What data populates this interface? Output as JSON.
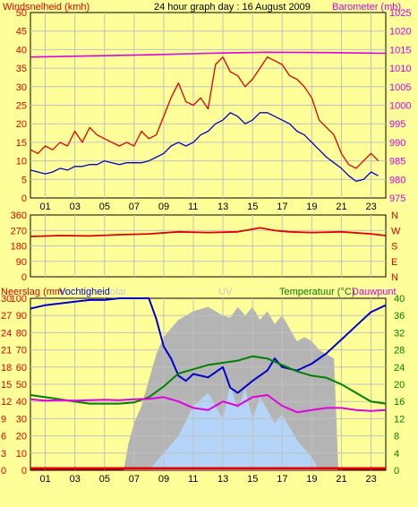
{
  "colors": {
    "background": "#ffff99",
    "plot_bg": "#ffff99",
    "grid": "#c0c0c0",
    "gust": "#e00000",
    "wind": "#0000cc",
    "baro": "#e000e0",
    "dir": "#e00000",
    "humidity": "#0000cc",
    "temp": "#008000",
    "dew": "#e000e0",
    "solar": "#b4b4b4",
    "uv": "#b4d8ff",
    "rain": "#e00000",
    "left_axis": "#e00000",
    "temp_axis": "#008000",
    "dew_label": "#e000e0",
    "solar_label": "#c8c8c8"
  },
  "chart_data": [
    {
      "type": "line",
      "title": "24 hour graph day : 16 August 2009",
      "left_label": "Windsnelheid (kmh)",
      "right_label": "Barometer (mb)",
      "left_ticks": [
        "0",
        "5",
        "10",
        "15",
        "20",
        "25",
        "30",
        "35",
        "40",
        "45",
        "50"
      ],
      "right_ticks": [
        "975",
        "980",
        "985",
        "990",
        "995",
        "1000",
        "1005",
        "1010",
        "1015",
        "1020",
        "1025"
      ],
      "x_ticks": [
        "01",
        "03",
        "05",
        "07",
        "09",
        "11",
        "13",
        "15",
        "17",
        "19",
        "21",
        "23"
      ],
      "ylim": [
        0,
        50
      ],
      "ylim_right": [
        975,
        1025
      ],
      "xlim": [
        0,
        24
      ],
      "series": [
        {
          "name": "gust",
          "axis": "left",
          "x": [
            0,
            0.5,
            1,
            1.5,
            2,
            2.5,
            3,
            3.5,
            4,
            4.5,
            5,
            5.5,
            6,
            6.5,
            7,
            7.5,
            8,
            8.5,
            9,
            9.5,
            10,
            10.5,
            11,
            11.5,
            12,
            12.5,
            13,
            13.5,
            14,
            14.5,
            15,
            15.5,
            16,
            16.5,
            17,
            17.5,
            18,
            18.5,
            19,
            19.5,
            20,
            20.5,
            21,
            21.5,
            22,
            22.5,
            23,
            23.5
          ],
          "y": [
            13,
            12,
            14,
            13,
            15,
            14,
            18,
            15,
            19,
            17,
            16,
            15,
            14,
            15,
            14,
            18,
            16,
            17,
            22,
            27,
            31,
            26,
            25,
            27,
            24,
            36,
            38,
            34,
            33,
            30,
            32,
            35,
            38,
            37,
            36,
            33,
            32,
            30,
            27,
            21,
            19,
            17,
            12,
            9,
            8,
            10,
            12,
            10
          ]
        },
        {
          "name": "wind",
          "axis": "left",
          "x": [
            0,
            0.5,
            1,
            1.5,
            2,
            2.5,
            3,
            3.5,
            4,
            4.5,
            5,
            5.5,
            6,
            6.5,
            7,
            7.5,
            8,
            8.5,
            9,
            9.5,
            10,
            10.5,
            11,
            11.5,
            12,
            12.5,
            13,
            13.5,
            14,
            14.5,
            15,
            15.5,
            16,
            16.5,
            17,
            17.5,
            18,
            18.5,
            19,
            19.5,
            20,
            20.5,
            21,
            21.5,
            22,
            22.5,
            23,
            23.5
          ],
          "y": [
            7.5,
            7,
            6.5,
            7,
            8,
            7.5,
            8.5,
            8.5,
            9,
            9,
            10,
            9.5,
            9,
            9.5,
            9.5,
            9.5,
            10,
            11,
            12,
            14,
            15,
            14,
            15,
            17,
            18,
            20,
            21,
            23,
            22,
            20,
            21,
            23,
            23,
            22,
            21,
            20,
            18,
            17,
            15,
            13,
            11,
            9.5,
            8,
            6,
            4.5,
            5,
            7,
            6
          ]
        },
        {
          "name": "baro",
          "axis": "right",
          "x": [
            0,
            4,
            8,
            12,
            16,
            20,
            24
          ],
          "y": [
            1013,
            1013.3,
            1013.6,
            1014,
            1014.3,
            1014.2,
            1014
          ]
        }
      ]
    },
    {
      "type": "line",
      "left_ticks": [
        "0",
        "90",
        "180",
        "270",
        "360"
      ],
      "right_ticks": [
        "N",
        "E",
        "S",
        "W",
        "N"
      ],
      "x_ticks": [
        "01",
        "03",
        "05",
        "07",
        "09",
        "11",
        "13",
        "15",
        "17",
        "19",
        "21",
        "23"
      ],
      "ylim": [
        0,
        360
      ],
      "xlim": [
        0,
        24
      ],
      "series": [
        {
          "name": "dir",
          "x": [
            0,
            2,
            4,
            6,
            8,
            10,
            12,
            14,
            15.5,
            16.5,
            17.5,
            19,
            21,
            23,
            24
          ],
          "y": [
            235,
            240,
            238,
            245,
            250,
            262,
            258,
            262,
            285,
            270,
            262,
            258,
            262,
            250,
            240
          ]
        }
      ]
    },
    {
      "type": "line",
      "left_label": "Neerslag (mm",
      "left2_label": "Vochtigheid",
      "solar_label": "olar",
      "uv_label": "UV",
      "right_label": "Temperatuur (°C)",
      "right2_label": "Dauwpunt",
      "rain_ticks": [
        "0",
        "3",
        "6",
        "9",
        "12",
        "15",
        "18",
        "21",
        "24",
        "27",
        "30"
      ],
      "hum_ticks": [
        "0",
        "10",
        "20",
        "30",
        "40",
        "50",
        "60",
        "70",
        "80",
        "90",
        "100"
      ],
      "temp_ticks": [
        "0",
        "4",
        "8",
        "12",
        "16",
        "20",
        "24",
        "28",
        "32",
        "36",
        "40"
      ],
      "x_ticks": [
        "01",
        "03",
        "05",
        "07",
        "09",
        "11",
        "13",
        "15",
        "17",
        "19",
        "21",
        "23"
      ],
      "hum_lim": [
        0,
        100
      ],
      "temp_lim": [
        0,
        40
      ],
      "xlim": [
        0,
        24
      ],
      "series": [
        {
          "name": "humidity",
          "axis": "hum",
          "x": [
            0,
            1,
            2,
            3,
            4,
            5,
            6,
            7,
            8,
            8.5,
            9,
            9.5,
            10,
            10.5,
            11,
            12,
            13,
            13.5,
            14,
            15,
            16,
            16.5,
            17,
            18,
            19,
            20,
            21,
            22,
            23,
            24
          ],
          "y": [
            94,
            96,
            97,
            98,
            99,
            99,
            100,
            100,
            100,
            88,
            72,
            65,
            55,
            52,
            56,
            54,
            60,
            48,
            45,
            52,
            58,
            65,
            60,
            58,
            62,
            68,
            76,
            84,
            92,
            96
          ]
        },
        {
          "name": "temp",
          "axis": "temp",
          "x": [
            0,
            1,
            2,
            3,
            4,
            5,
            6,
            7,
            8,
            9,
            10,
            11,
            12,
            13,
            14,
            15,
            16,
            17,
            18,
            19,
            20,
            21,
            22,
            23,
            24
          ],
          "y": [
            17.5,
            17,
            16.5,
            16,
            15.5,
            15.5,
            15.5,
            15.8,
            17,
            19.5,
            22.5,
            23.5,
            24.5,
            25,
            25.5,
            26.5,
            26,
            24.5,
            23,
            22,
            21.5,
            20,
            18,
            16,
            15.5
          ]
        },
        {
          "name": "dew",
          "axis": "temp",
          "x": [
            0,
            1,
            2,
            3,
            4,
            5,
            6,
            7,
            8,
            9,
            10,
            11,
            12,
            13,
            14,
            15,
            16,
            17,
            18,
            19,
            20,
            21,
            22,
            23,
            24
          ],
          "y": [
            16.5,
            16.2,
            16.3,
            16.2,
            16.3,
            16.4,
            16.3,
            16.5,
            16.6,
            17,
            16,
            14.5,
            14,
            16,
            15,
            17,
            17.5,
            15,
            13.5,
            14,
            14.5,
            14.5,
            14,
            13.8,
            14
          ]
        },
        {
          "name": "solar",
          "axis": "temp",
          "x": [
            6.3,
            6.6,
            7,
            7.5,
            8,
            8.5,
            9,
            9.5,
            10,
            10.5,
            11,
            11.5,
            12,
            12.5,
            13,
            13.5,
            14,
            14.5,
            15,
            15.5,
            16,
            16.5,
            17,
            17.5,
            18,
            18.5,
            19,
            19.5,
            20,
            20.5,
            20.8,
            21
          ],
          "y": [
            0,
            6,
            11,
            15,
            21,
            27,
            31,
            33,
            35,
            36,
            37,
            37.5,
            38,
            37,
            36,
            35.5,
            38,
            36,
            38,
            35,
            37,
            34,
            36,
            33,
            30,
            31,
            30,
            28,
            27,
            26,
            0,
            0
          ]
        },
        {
          "name": "uv",
          "axis": "temp",
          "x": [
            8,
            9,
            10,
            11,
            12,
            13,
            13.5,
            14,
            14.5,
            15,
            15.5,
            16,
            16.5,
            17,
            18,
            19,
            19.5
          ],
          "y": [
            0,
            4,
            8,
            15,
            18,
            12,
            20,
            14,
            19,
            12,
            17,
            14,
            11,
            13,
            7,
            3,
            0
          ]
        },
        {
          "name": "rain",
          "axis": "rain",
          "x": [
            0,
            24
          ],
          "y": [
            0,
            0
          ]
        }
      ]
    }
  ]
}
